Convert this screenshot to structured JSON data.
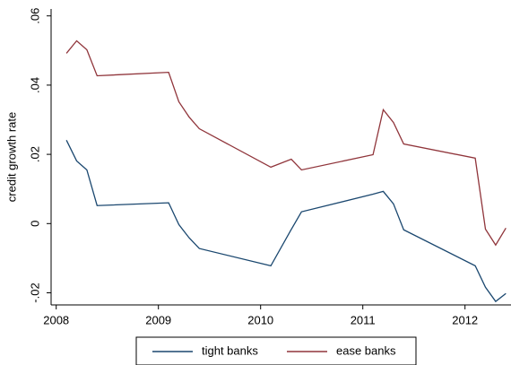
{
  "chart_data": {
    "type": "line",
    "y_label": "credit growth rate",
    "x": [
      2008.1,
      2008.2,
      2008.3,
      2008.4,
      2009.1,
      2009.2,
      2009.3,
      2009.4,
      2010.1,
      2010.3,
      2010.4,
      2011.1,
      2011.2,
      2011.3,
      2011.4,
      2012.1,
      2012.2,
      2012.3,
      2012.4
    ],
    "series": [
      {
        "name": "tight banks",
        "color": "#1a476f",
        "values": [
          0.0241,
          0.0181,
          0.0155,
          0.0052,
          0.006,
          -0.0003,
          -0.0041,
          -0.0072,
          -0.0122,
          -0.0017,
          0.0034,
          0.0085,
          0.0093,
          0.0057,
          -0.0018,
          -0.0122,
          -0.0184,
          -0.0225,
          -0.0202
        ]
      },
      {
        "name": "ease banks",
        "color": "#90353b",
        "values": [
          0.0492,
          0.0528,
          0.0502,
          0.0427,
          0.0437,
          0.0352,
          0.0308,
          0.0274,
          0.0163,
          0.0186,
          0.0155,
          0.0199,
          0.0329,
          0.0292,
          0.023,
          0.0189,
          -0.0016,
          -0.0062,
          -0.0013
        ]
      }
    ],
    "xlim": [
      2007.95,
      2012.45
    ],
    "ylim": [
      -0.0235,
      0.062
    ],
    "xticks": [
      2008,
      2009,
      2010,
      2011,
      2012
    ],
    "yticks": [
      {
        "value": -0.02,
        "label": "-.02"
      },
      0,
      {
        "value": 0.02,
        "label": ".02"
      },
      {
        "value": 0.04,
        "label": ".04"
      },
      {
        "value": 0.06,
        "label": ".06"
      }
    ],
    "legend": "bottom"
  }
}
